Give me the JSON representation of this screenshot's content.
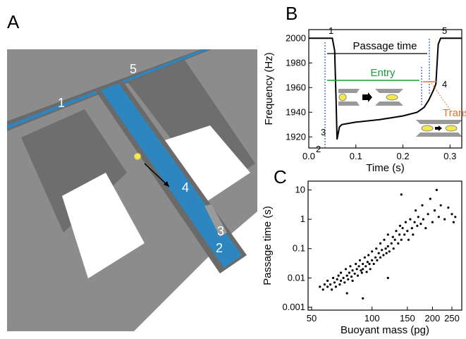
{
  "panels": [
    "A",
    "B",
    "C"
  ],
  "diagram": {
    "labels": [
      "1",
      "5",
      "4",
      "3",
      "2"
    ]
  },
  "chart_data": [
    {
      "type": "line",
      "xlabel": "Time (s)",
      "ylabel": "Frequency (Hz)",
      "x": [
        0,
        0.05,
        0.055,
        0.058,
        0.06,
        0.065,
        0.07,
        0.1,
        0.15,
        0.2,
        0.23,
        0.245,
        0.255,
        0.265,
        0.27,
        0.275,
        0.28,
        0.325
      ],
      "values": [
        2000,
        2000,
        1990,
        1950,
        1918,
        1928,
        1930,
        1932,
        1934,
        1937,
        1940,
        1944,
        1950,
        1958,
        1963,
        1995,
        2000,
        2000
      ],
      "color": "#000000",
      "xlim": [
        0,
        0.325
      ],
      "ylim": [
        1911,
        2007
      ],
      "xticks": [
        {
          "value": 0,
          "label": "0.0"
        },
        0.1,
        0.2,
        0.3
      ],
      "yticks": [
        1920,
        1940,
        1960,
        1980,
        2000
      ],
      "annotations": [
        {
          "text": "1",
          "color": "#000000"
        },
        {
          "text": "2",
          "color": "#000000"
        },
        {
          "text": "3",
          "color": "#000000"
        },
        {
          "text": "4",
          "color": "#000000"
        },
        {
          "text": "5",
          "color": "#000000"
        },
        {
          "text": "Passage time",
          "color": "#000000"
        },
        {
          "text": "Entry",
          "color": "#1a9c3c"
        },
        {
          "text": "Transit",
          "color": "#f07020"
        }
      ]
    },
    {
      "type": "scatter",
      "xlabel": "Buoyant mass (pg)",
      "ylabel": "Passage time (s)",
      "xscale": "log",
      "yscale": "log",
      "color": "#000000",
      "xlim": [
        48,
        280
      ],
      "ylim": [
        0.0008,
        20
      ],
      "xticks": [
        50,
        100,
        150,
        200,
        250
      ],
      "yticks": [
        0.001,
        0.01,
        0.1,
        1,
        10
      ],
      "x": [
        55,
        57,
        58,
        60,
        60,
        62,
        63,
        64,
        65,
        66,
        67,
        68,
        69,
        70,
        70,
        72,
        73,
        74,
        75,
        76,
        77,
        78,
        79,
        80,
        80,
        82,
        83,
        84,
        85,
        86,
        87,
        88,
        89,
        90,
        90,
        92,
        93,
        94,
        95,
        96,
        97,
        98,
        100,
        100,
        102,
        104,
        105,
        106,
        108,
        110,
        110,
        112,
        114,
        115,
        117,
        118,
        120,
        120,
        122,
        125,
        127,
        128,
        130,
        132,
        135,
        137,
        138,
        140,
        142,
        145,
        147,
        150,
        152,
        155,
        158,
        160,
        163,
        165,
        168,
        170,
        175,
        178,
        180,
        185,
        190,
        195,
        200,
        205,
        210,
        215,
        220,
        230,
        240,
        250,
        255,
        260,
        140,
        90,
        75,
        120
      ],
      "values": [
        0.005,
        0.004,
        0.006,
        0.005,
        0.008,
        0.006,
        0.004,
        0.01,
        0.007,
        0.005,
        0.009,
        0.012,
        0.006,
        0.008,
        0.015,
        0.01,
        0.007,
        0.02,
        0.012,
        0.009,
        0.015,
        0.025,
        0.011,
        0.018,
        0.008,
        0.014,
        0.03,
        0.02,
        0.012,
        0.025,
        0.04,
        0.018,
        0.015,
        0.03,
        0.02,
        0.05,
        0.025,
        0.016,
        0.035,
        0.06,
        0.03,
        0.02,
        0.04,
        0.08,
        0.03,
        0.05,
        0.1,
        0.04,
        0.07,
        0.05,
        0.15,
        0.09,
        0.06,
        0.2,
        0.1,
        0.07,
        0.12,
        0.3,
        0.08,
        0.15,
        0.25,
        0.1,
        0.2,
        0.4,
        0.15,
        0.3,
        0.6,
        0.2,
        0.5,
        0.3,
        0.8,
        0.4,
        0.2,
        1,
        0.5,
        0.3,
        0.8,
        2,
        0.6,
        1.2,
        0.7,
        3,
        1,
        0.5,
        1.5,
        5,
        0.8,
        2,
        10,
        1.2,
        3,
        1,
        2.5,
        1.5,
        0.8,
        1.2,
        7,
        0.002,
        0.003,
        0.01
      ]
    }
  ]
}
